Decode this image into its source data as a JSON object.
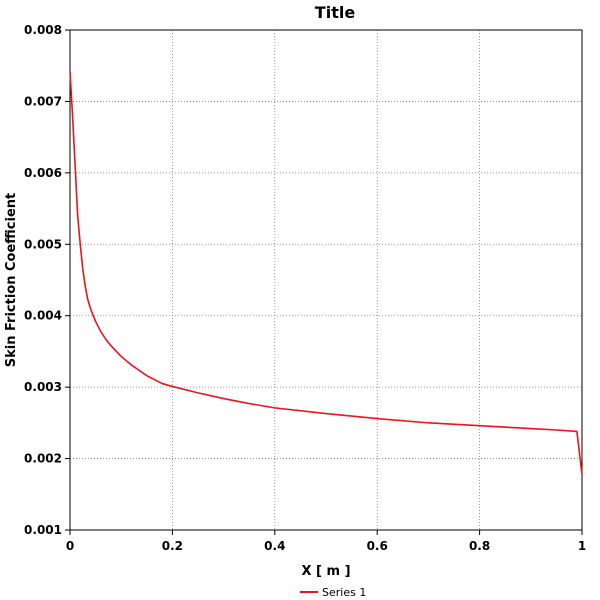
{
  "chart_data": {
    "type": "line",
    "title": "Title",
    "xlabel": "X [ m ]",
    "ylabel": "Skin Friction Coefficient",
    "xlim": [
      0,
      1
    ],
    "ylim": [
      0.001,
      0.008
    ],
    "xticks": [
      "0",
      "0.2",
      "0.4",
      "0.6",
      "0.8",
      "1"
    ],
    "yticks": [
      "0.001",
      "0.002",
      "0.003",
      "0.004",
      "0.005",
      "0.006",
      "0.007",
      "0.008"
    ],
    "grid": true,
    "legend_position": "bottom-center",
    "series": [
      {
        "name": "Series 1",
        "color": "#e8141e",
        "x": [
          0.0,
          0.005,
          0.01,
          0.015,
          0.02,
          0.025,
          0.03,
          0.035,
          0.04,
          0.05,
          0.06,
          0.07,
          0.08,
          0.1,
          0.12,
          0.15,
          0.18,
          0.2,
          0.25,
          0.3,
          0.35,
          0.4,
          0.5,
          0.6,
          0.7,
          0.8,
          0.9,
          0.95,
          0.99,
          1.0
        ],
        "y": [
          0.00742,
          0.0068,
          0.0061,
          0.0054,
          0.005,
          0.00465,
          0.0044,
          0.00422,
          0.0041,
          0.00392,
          0.00378,
          0.00367,
          0.00358,
          0.00343,
          0.00331,
          0.00316,
          0.00305,
          0.00301,
          0.00292,
          0.00284,
          0.00277,
          0.00271,
          0.00263,
          0.00256,
          0.0025,
          0.00246,
          0.00242,
          0.0024,
          0.00238,
          0.00178
        ]
      }
    ]
  }
}
